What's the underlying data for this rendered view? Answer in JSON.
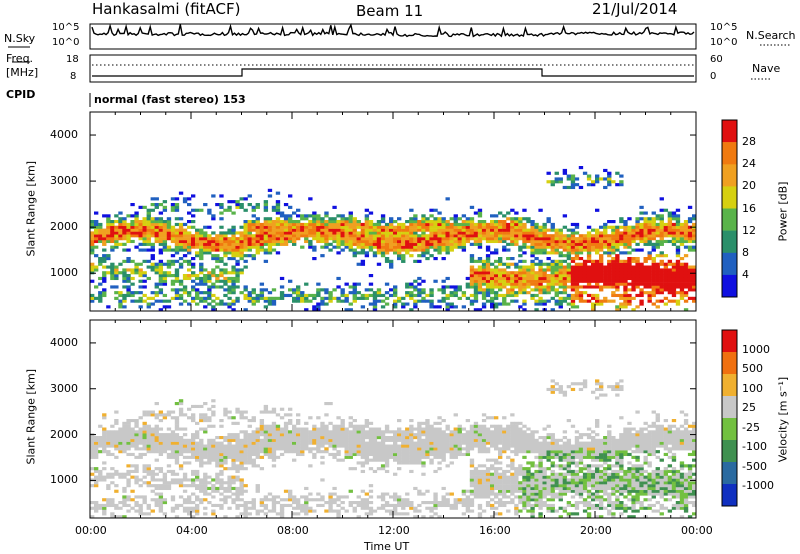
{
  "header": {
    "station": "Hankasalmi (fitACF)",
    "beam": "Beam 11",
    "date": "21/Jul/2014"
  },
  "top_panels": {
    "nsky_label": "N.Sky",
    "nsky_ticks": [
      "10^5",
      "10^0"
    ],
    "nsearch_label": "N.Search",
    "nsearch_ticks": [
      "10^5",
      "10^0"
    ],
    "freq_label_1": "Freq.",
    "freq_label_2": "[MHz]",
    "freq_ticks": [
      "18",
      "8"
    ],
    "nave_label": "Nave",
    "nave_ticks": [
      "60",
      "0"
    ],
    "cpid_label": "CPID",
    "cpid_text": "normal (fast stereo) 153"
  },
  "chart_data": [
    {
      "type": "heatmap",
      "title": "",
      "xlabel": "",
      "ylabel": "Slant Range [km]",
      "ylim": [
        180,
        4500
      ],
      "yticks": [
        "1000",
        "2000",
        "3000",
        "4000"
      ],
      "colorbar_label": "Power [dB]",
      "colorbar_ticks": [
        "28",
        "24",
        "20",
        "16",
        "12",
        "8",
        "4"
      ],
      "colors": [
        "#1010e0",
        "#2060c0",
        "#2a8f6a",
        "#59b34a",
        "#d6d010",
        "#f0a020",
        "#f07a10",
        "#e01010"
      ]
    },
    {
      "type": "heatmap",
      "title": "",
      "xlabel": "Time UT",
      "ylabel": "Slant Range [km]",
      "ylim": [
        180,
        4500
      ],
      "yticks": [
        "1000",
        "2000",
        "3000",
        "4000"
      ],
      "xticks": [
        "00:00",
        "04:00",
        "08:00",
        "12:00",
        "16:00",
        "20:00",
        "00:00"
      ],
      "colorbar_label": "Velocity [m s⁻¹]",
      "colorbar_ticks": [
        "1000",
        "500",
        "100",
        "25",
        "-25",
        "-100",
        "-500",
        "-1000"
      ],
      "colors": [
        "#1030c0",
        "#2a6aa0",
        "#3f9050",
        "#72c040",
        "#c8c8c8",
        "#f0b030",
        "#f07010",
        "#e01010"
      ]
    }
  ]
}
